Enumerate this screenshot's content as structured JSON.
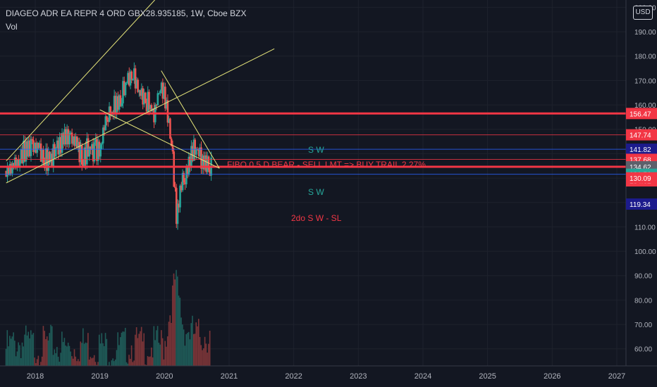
{
  "header": {
    "title": "DIAGEO ADR EA REPR 4 ORD GBX28.935185, 1W, Cboe BZX",
    "volume_label": "Vol",
    "currency": "USD"
  },
  "annotations": {
    "sw_upper": "S W",
    "fibo": "FIBO 0.5 D BEAR - SELL LMT => BUY TRAIL 2.27%",
    "sw_lower": "S W",
    "second_sw": "2do S W - SL"
  },
  "colors": {
    "background": "#131722",
    "up": "#26a69a",
    "down": "#ef5350",
    "trend_line": "#e5e47a",
    "level_red": "#f23645",
    "level_blue": "#2962ff",
    "teal_text": "#26a69a",
    "red_text": "#f23645"
  },
  "chart_data": {
    "type": "candlestick",
    "title": "DIAGEO ADR EA REPR 4 ORD GBX28.935185, 1W, Cboe BZX",
    "x_tick_labels": [
      "2018",
      "2019",
      "2020",
      "2021",
      "2022",
      "2023",
      "2024",
      "2025",
      "2026",
      "2027"
    ],
    "price_axis": {
      "ticks": [
        60,
        70,
        80,
        90,
        100,
        110,
        120,
        130,
        140,
        150,
        160,
        170,
        180,
        190,
        200
      ],
      "ylim": [
        53,
        203
      ]
    },
    "price_labels": [
      {
        "value": 156.47,
        "label": "156.47",
        "kind": "red"
      },
      {
        "value": 147.74,
        "label": "147.74",
        "kind": "red"
      },
      {
        "value": 141.82,
        "label": "141.82",
        "kind": "blue"
      },
      {
        "value": 137.68,
        "label": "137.68",
        "kind": "red"
      },
      {
        "value": 134.62,
        "label": "134.62",
        "kind": "gray"
      },
      {
        "value": 134.62,
        "label": "134.62",
        "kind": "red"
      },
      {
        "value": 131.56,
        "label": "131.56",
        "kind": "teal"
      },
      {
        "value": 130.09,
        "label": "130.09",
        "kind": "red"
      },
      {
        "value": 119.34,
        "label": "119.34",
        "kind": "blue"
      }
    ],
    "levels": [
      {
        "value": 156.47,
        "kind": "red-thick"
      },
      {
        "value": 147.74,
        "kind": "red"
      },
      {
        "value": 141.82,
        "kind": "blue"
      },
      {
        "value": 137.68,
        "kind": "red"
      },
      {
        "value": 134.62,
        "kind": "red-thick"
      },
      {
        "value": 131.56,
        "kind": "blue"
      }
    ],
    "price_series": [
      {
        "date": "2017.55",
        "close": 133
      },
      {
        "date": "2017.70",
        "close": 139
      },
      {
        "date": "2017.85",
        "close": 144
      },
      {
        "date": "2018.00",
        "close": 147
      },
      {
        "date": "2018.10",
        "close": 143
      },
      {
        "date": "2018.20",
        "close": 139
      },
      {
        "date": "2018.30",
        "close": 143
      },
      {
        "date": "2018.45",
        "close": 148
      },
      {
        "date": "2018.58",
        "close": 150
      },
      {
        "date": "2018.72",
        "close": 140
      },
      {
        "date": "2018.82",
        "close": 145
      },
      {
        "date": "2018.92",
        "close": 144
      },
      {
        "date": "2019.00",
        "close": 143
      },
      {
        "date": "2019.08",
        "close": 156
      },
      {
        "date": "2019.20",
        "close": 160
      },
      {
        "date": "2019.33",
        "close": 167
      },
      {
        "date": "2019.45",
        "close": 175
      },
      {
        "date": "2019.55",
        "close": 172
      },
      {
        "date": "2019.65",
        "close": 165
      },
      {
        "date": "2019.75",
        "close": 163
      },
      {
        "date": "2019.85",
        "close": 160
      },
      {
        "date": "2019.95",
        "close": 171
      },
      {
        "date": "2020.05",
        "close": 160
      },
      {
        "date": "2020.13",
        "close": 138
      },
      {
        "date": "2020.19",
        "close": 115
      },
      {
        "date": "2020.25",
        "close": 130
      },
      {
        "date": "2020.35",
        "close": 135
      },
      {
        "date": "2020.45",
        "close": 144
      },
      {
        "date": "2020.55",
        "close": 142
      },
      {
        "date": "2020.62",
        "close": 139
      },
      {
        "date": "2020.68",
        "close": 137
      },
      {
        "date": "2020.72",
        "close": 136
      }
    ],
    "volume_series": [
      {
        "date": "2017.55",
        "value": 64
      },
      {
        "date": "2017.75",
        "value": 67
      },
      {
        "date": "2018.00",
        "value": 65
      },
      {
        "date": "2018.25",
        "value": 66
      },
      {
        "date": "2018.50",
        "value": 64
      },
      {
        "date": "2018.75",
        "value": 66
      },
      {
        "date": "2019.00",
        "value": 65
      },
      {
        "date": "2019.25",
        "value": 64
      },
      {
        "date": "2019.50",
        "value": 66
      },
      {
        "date": "2019.75",
        "value": 65
      },
      {
        "date": "2020.00",
        "value": 66
      },
      {
        "date": "2020.17",
        "value": 92
      },
      {
        "date": "2020.30",
        "value": 73
      },
      {
        "date": "2020.50",
        "value": 69
      },
      {
        "date": "2020.70",
        "value": 70
      }
    ],
    "trend_lines": [
      {
        "from": {
          "date": "2017.55",
          "price": 137
        },
        "to": {
          "date": "2019.85",
          "price": 203
        }
      },
      {
        "from": {
          "date": "2017.55",
          "price": 128
        },
        "to": {
          "date": "2021.70",
          "price": 183
        }
      },
      {
        "from": {
          "date": "2019.00",
          "price": 158
        },
        "to": {
          "date": "2020.85",
          "price": 134
        }
      },
      {
        "from": {
          "date": "2019.95",
          "price": 174
        },
        "to": {
          "date": "2020.85",
          "price": 134
        }
      }
    ]
  }
}
